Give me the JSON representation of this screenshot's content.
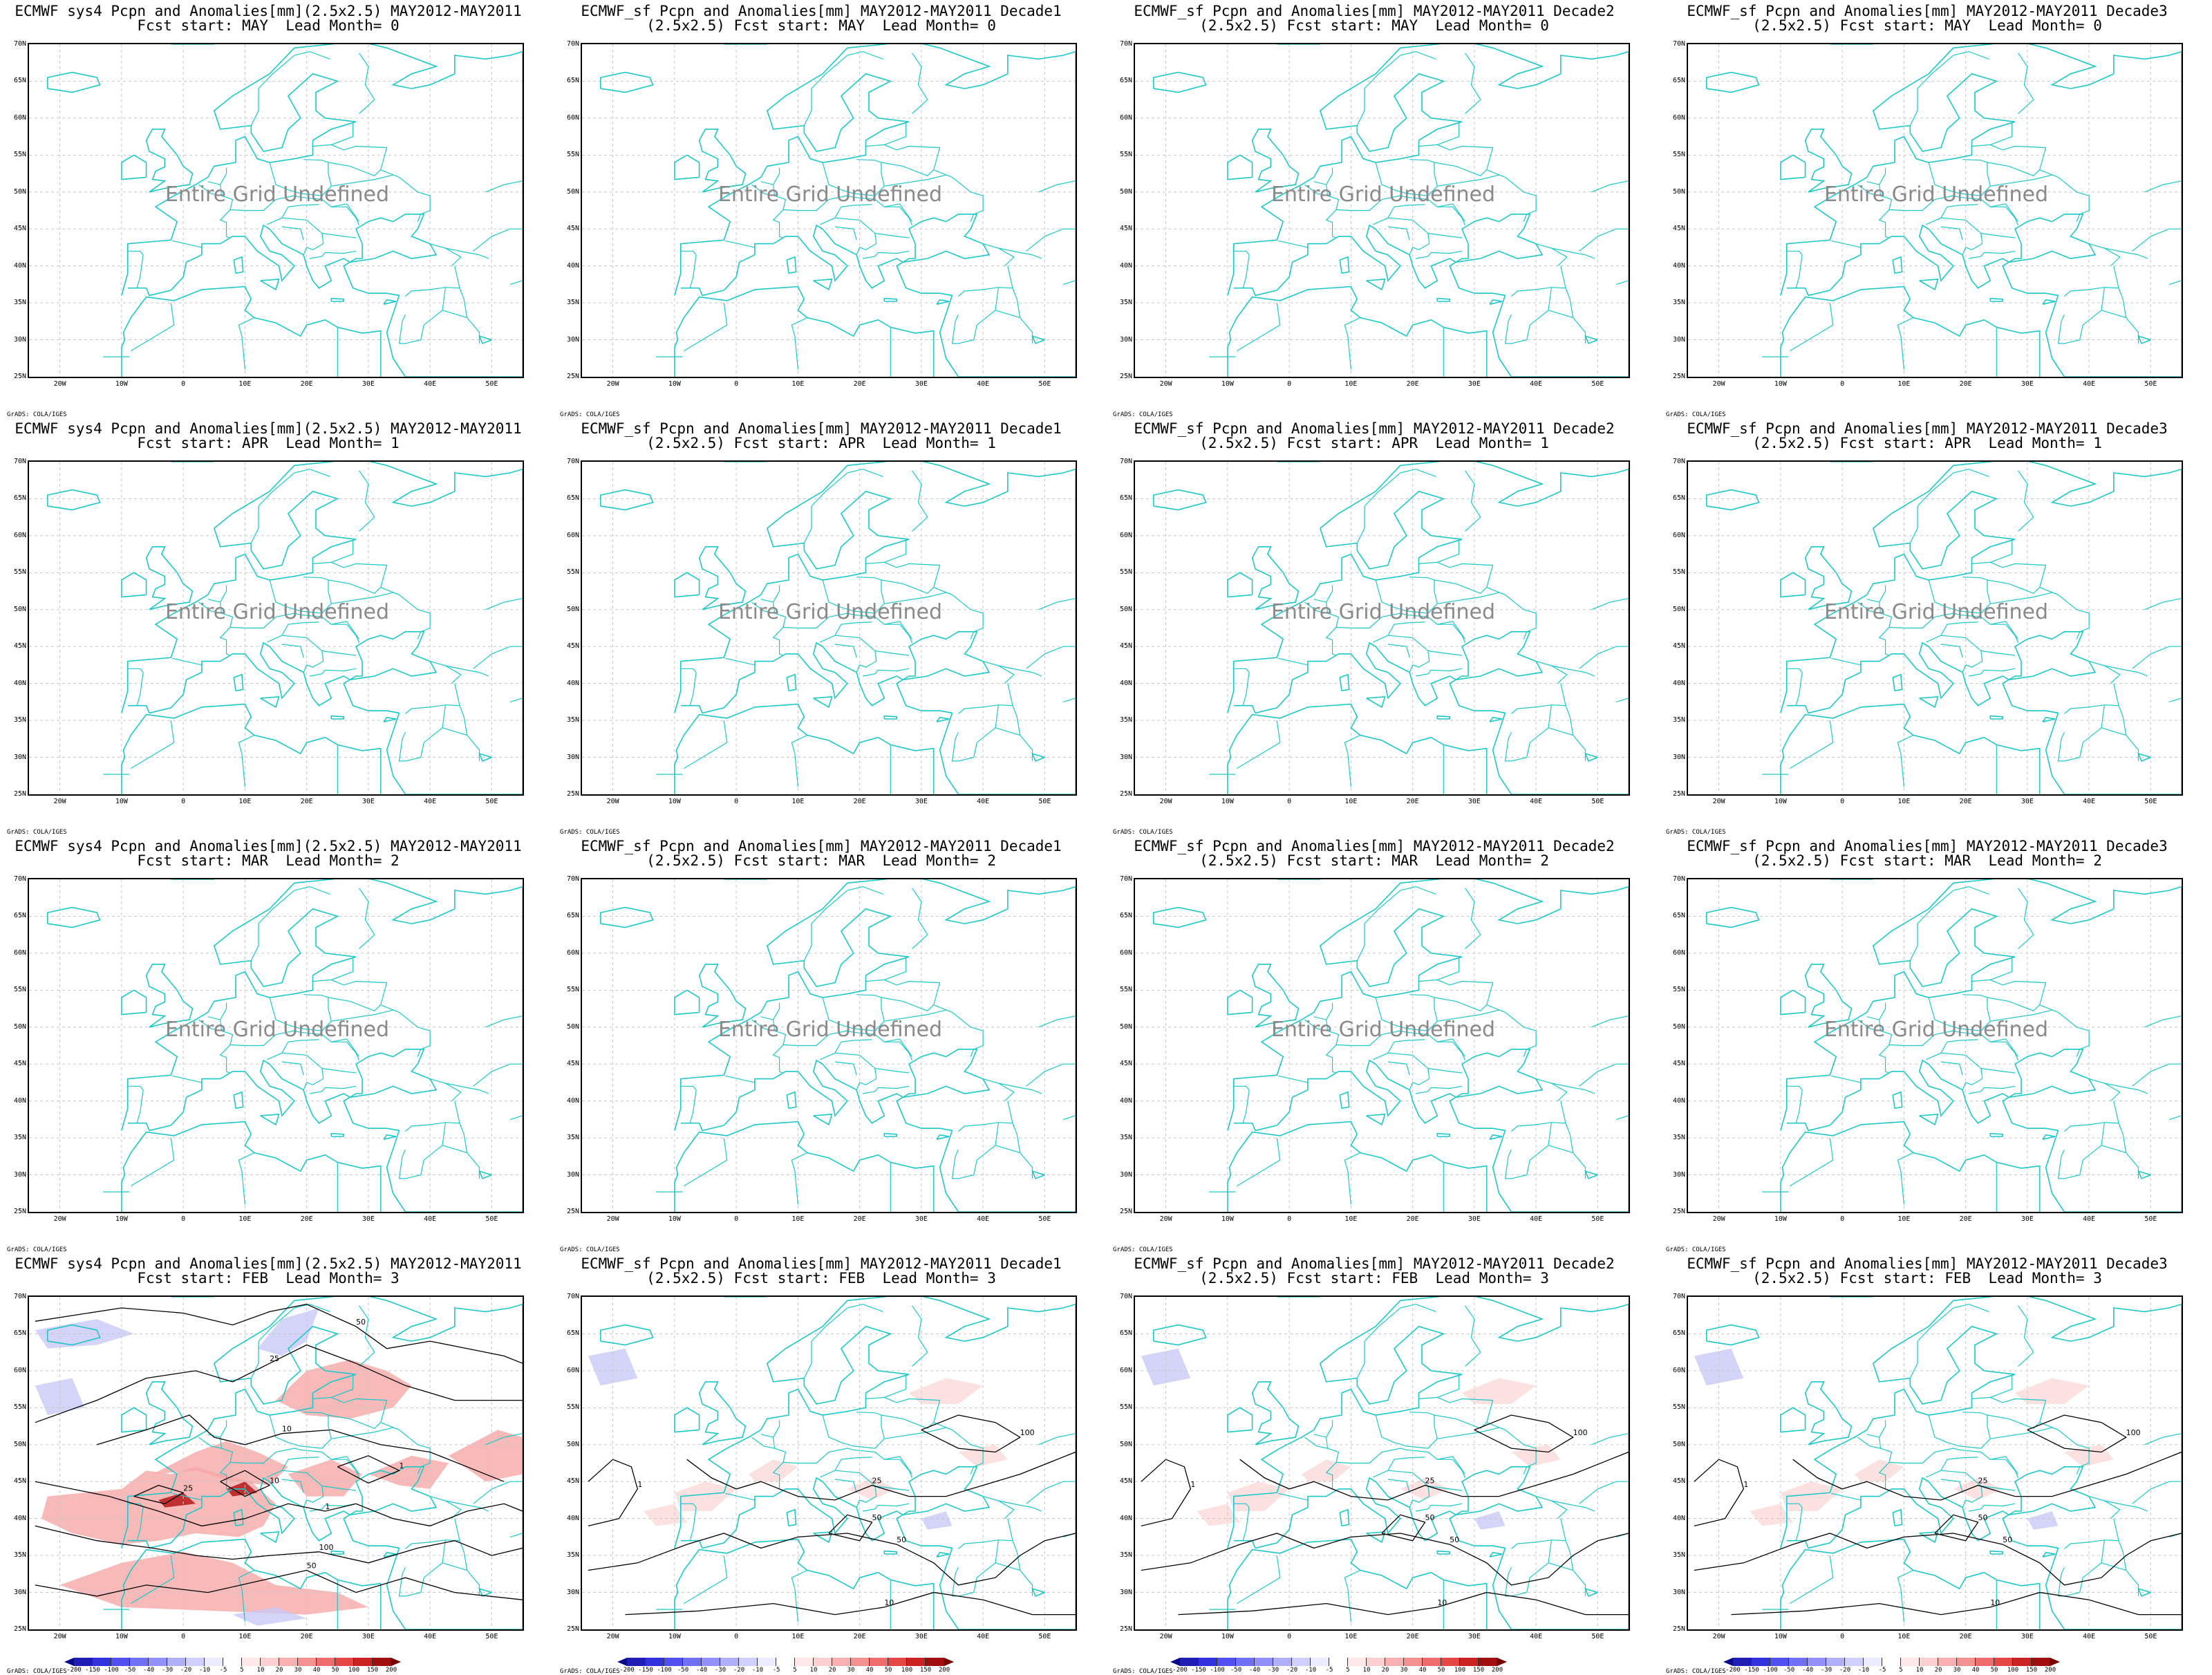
{
  "panels": [
    {
      "id": "r1c1",
      "title": [
        "ECMWF sys4 Pcpn and Anomalies[mm](2.5x2.5) MAY2012-MAY2011",
        "Fcst start: MAY  Lead Month= 0"
      ],
      "undefined_text": "Entire Grid Undefined",
      "has_data": false
    },
    {
      "id": "r1c2",
      "title": [
        "ECMWF_sf Pcpn and Anomalies[mm] MAY2012-MAY2011 Decade1",
        "(2.5x2.5) Fcst start: MAY  Lead Month= 0"
      ],
      "undefined_text": "Entire Grid Undefined",
      "has_data": false
    },
    {
      "id": "r1c3",
      "title": [
        "ECMWF_sf Pcpn and Anomalies[mm] MAY2012-MAY2011 Decade2",
        "(2.5x2.5) Fcst start: MAY  Lead Month= 0"
      ],
      "undefined_text": "Entire Grid Undefined",
      "has_data": false
    },
    {
      "id": "r1c4",
      "title": [
        "ECMWF_sf Pcpn and Anomalies[mm] MAY2012-MAY2011 Decade3",
        "(2.5x2.5) Fcst start: MAY  Lead Month= 0"
      ],
      "undefined_text": "Entire Grid Undefined",
      "has_data": false
    },
    {
      "id": "r2c1",
      "title": [
        "ECMWF sys4 Pcpn and Anomalies[mm](2.5x2.5) MAY2012-MAY2011",
        "Fcst start: APR  Lead Month= 1"
      ],
      "undefined_text": "Entire Grid Undefined",
      "has_data": false
    },
    {
      "id": "r2c2",
      "title": [
        "ECMWF_sf Pcpn and Anomalies[mm] MAY2012-MAY2011 Decade1",
        "(2.5x2.5) Fcst start: APR  Lead Month= 1"
      ],
      "undefined_text": "Entire Grid Undefined",
      "has_data": false
    },
    {
      "id": "r2c3",
      "title": [
        "ECMWF_sf Pcpn and Anomalies[mm] MAY2012-MAY2011 Decade2",
        "(2.5x2.5) Fcst start: APR  Lead Month= 1"
      ],
      "undefined_text": "Entire Grid Undefined",
      "has_data": false
    },
    {
      "id": "r2c4",
      "title": [
        "ECMWF_sf Pcpn and Anomalies[mm] MAY2012-MAY2011 Decade3",
        "(2.5x2.5) Fcst start: APR  Lead Month= 1"
      ],
      "undefined_text": "Entire Grid Undefined",
      "has_data": false
    },
    {
      "id": "r3c1",
      "title": [
        "ECMWF sys4 Pcpn and Anomalies[mm](2.5x2.5) MAY2012-MAY2011",
        "Fcst start: MAR  Lead Month= 2"
      ],
      "undefined_text": "Entire Grid Undefined",
      "has_data": false
    },
    {
      "id": "r3c2",
      "title": [
        "ECMWF_sf Pcpn and Anomalies[mm] MAY2012-MAY2011 Decade1",
        "(2.5x2.5) Fcst start: MAR  Lead Month= 2"
      ],
      "undefined_text": "Entire Grid Undefined",
      "has_data": false
    },
    {
      "id": "r3c3",
      "title": [
        "ECMWF_sf Pcpn and Anomalies[mm] MAY2012-MAY2011 Decade2",
        "(2.5x2.5) Fcst start: MAR  Lead Month= 2"
      ],
      "undefined_text": "Entire Grid Undefined",
      "has_data": false
    },
    {
      "id": "r3c4",
      "title": [
        "ECMWF_sf Pcpn and Anomalies[mm] MAY2012-MAY2011 Decade3",
        "(2.5x2.5) Fcst start: MAR  Lead Month= 2"
      ],
      "undefined_text": "Entire Grid Undefined",
      "has_data": false
    },
    {
      "id": "r4c1",
      "title": [
        "ECMWF sys4 Pcpn and Anomalies[mm](2.5x2.5) MAY2012-MAY2011",
        "Fcst start: FEB  Lead Month= 3"
      ],
      "undefined_text": "",
      "has_data": true
    },
    {
      "id": "r4c2",
      "title": [
        "ECMWF_sf Pcpn and Anomalies[mm] MAY2012-MAY2011 Decade1",
        "(2.5x2.5) Fcst start: FEB  Lead Month= 3"
      ],
      "undefined_text": "",
      "has_data": true
    },
    {
      "id": "r4c3",
      "title": [
        "ECMWF_sf Pcpn and Anomalies[mm] MAY2012-MAY2011 Decade2",
        "(2.5x2.5) Fcst start: FEB  Lead Month= 3"
      ],
      "undefined_text": "",
      "has_data": true
    },
    {
      "id": "r4c4",
      "title": [
        "ECMWF_sf Pcpn and Anomalies[mm] MAY2012-MAY2011 Decade3",
        "(2.5x2.5) Fcst start: FEB  Lead Month= 3"
      ],
      "undefined_text": "",
      "has_data": true
    }
  ],
  "credit": "GrADS: COLA/IGES",
  "colors": {
    "coast": "#1ec8c8",
    "grid": "#c8c8c8",
    "contour": "#000000",
    "neg": "#2222cc",
    "pos": "#cc2222"
  },
  "chart_data": {
    "type": "heatmap",
    "lon_range": [
      -25,
      55
    ],
    "lat_range": [
      25,
      70
    ],
    "x_ticks": [
      "20W",
      "10W",
      "0",
      "10E",
      "20E",
      "30E",
      "40E",
      "50E"
    ],
    "x_tick_values": [
      -20,
      -10,
      0,
      10,
      20,
      30,
      40,
      50
    ],
    "y_ticks": [
      "25N",
      "30N",
      "35N",
      "40N",
      "45N",
      "50N",
      "55N",
      "60N",
      "65N",
      "70N"
    ],
    "y_tick_values": [
      25,
      30,
      35,
      40,
      45,
      50,
      55,
      60,
      65,
      70
    ],
    "colorbar_levels": [
      "-200",
      "-150",
      "-100",
      "-50",
      "-40",
      "-30",
      "-20",
      "-10",
      "-5",
      "5",
      "10",
      "20",
      "30",
      "40",
      "50",
      "100",
      "150",
      "200"
    ],
    "colorbar_colors": [
      "#0a0a8c",
      "#1e1eb4",
      "#3232dc",
      "#5050f0",
      "#7070f5",
      "#9090f8",
      "#b0b0fa",
      "#d0d0fc",
      "#ececfe",
      "#ffffff",
      "#fee8e8",
      "#fcd0d0",
      "#f8b0b0",
      "#f49090",
      "#ee6c6c",
      "#e44646",
      "#cc2222",
      "#a00e0e",
      "#780000"
    ],
    "contour_labels": [
      "50",
      "25",
      "10",
      "1",
      "100"
    ]
  }
}
